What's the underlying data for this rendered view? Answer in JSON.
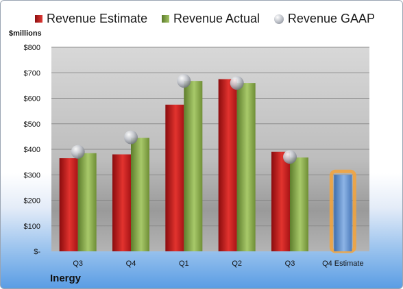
{
  "legend": {
    "estimate": "Revenue Estimate",
    "actual": "Revenue Actual",
    "gaap": "Revenue GAAP"
  },
  "unit_label": "$millions",
  "company": "Inergy",
  "colors": {
    "estimate": "#c8161d",
    "actual": "#8cad4c",
    "gaap": "#b8bcc4",
    "future_estimate": "#5b8fd0",
    "highlight": "#f5a33a"
  },
  "chart_data": {
    "type": "bar",
    "title": "",
    "xlabel": "",
    "ylabel": "$millions",
    "ylim": [
      0,
      800
    ],
    "y_ticks": [
      0,
      100,
      200,
      300,
      400,
      500,
      600,
      700,
      800
    ],
    "y_tick_labels": [
      "$-",
      "$100",
      "$200",
      "$300",
      "$400",
      "$500",
      "$600",
      "$700",
      "$800"
    ],
    "categories": [
      "Q3",
      "Q4",
      "Q1",
      "Q2",
      "Q3",
      "Q4 Estimate"
    ],
    "series": [
      {
        "name": "Revenue Estimate",
        "values": [
          365,
          380,
          575,
          675,
          390,
          null
        ]
      },
      {
        "name": "Revenue Actual",
        "values": [
          385,
          445,
          668,
          660,
          368,
          null
        ]
      },
      {
        "name": "Revenue GAAP",
        "values": [
          390,
          447,
          668,
          660,
          370,
          null
        ]
      }
    ],
    "future_estimate": {
      "category": "Q4 Estimate",
      "value": 300
    },
    "grid": true,
    "legend_position": "top"
  }
}
